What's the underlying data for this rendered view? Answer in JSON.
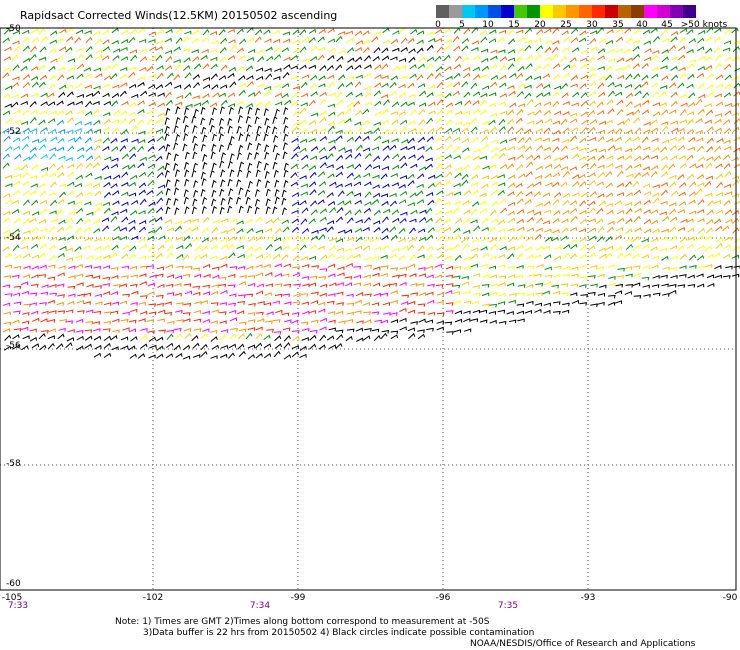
{
  "title": "Rapidsact Corrected Winds(12.5KM) 20150502 ascending",
  "legend": {
    "colors": [
      "#606060",
      "#9a9a9a",
      "#00c8f0",
      "#0096ff",
      "#0050e6",
      "#0000c8",
      "#46c800",
      "#009600",
      "#ffff00",
      "#ffc800",
      "#ff9600",
      "#ff6400",
      "#ff2800",
      "#c80000",
      "#b46400",
      "#8c3c00",
      "#ff00ff",
      "#d200d2",
      "#8200b4",
      "#3c008c"
    ],
    "labels": [
      "0",
      "5",
      "10",
      "15",
      "20",
      "25",
      "30",
      "35",
      "40",
      "45",
      ">50 knots"
    ]
  },
  "axes": {
    "y_ticks": [
      "-50",
      "-52",
      "-54",
      "-56",
      "-58",
      "-60"
    ],
    "x_ticks": [
      "-105",
      "-102",
      "-99",
      "-96",
      "-93",
      "-90"
    ],
    "times": [
      "7:33",
      "7:34",
      "7:35"
    ]
  },
  "notes": [
    "Note: 1) Times are GMT 2)Times along bottom correspond to measurement at -50S",
    "3)Data buffer is 22 hrs from 20150502 4) Black circles indicate possible contamination"
  ],
  "credit": "NOAA/NESDIS/Office of Research and Applications"
}
